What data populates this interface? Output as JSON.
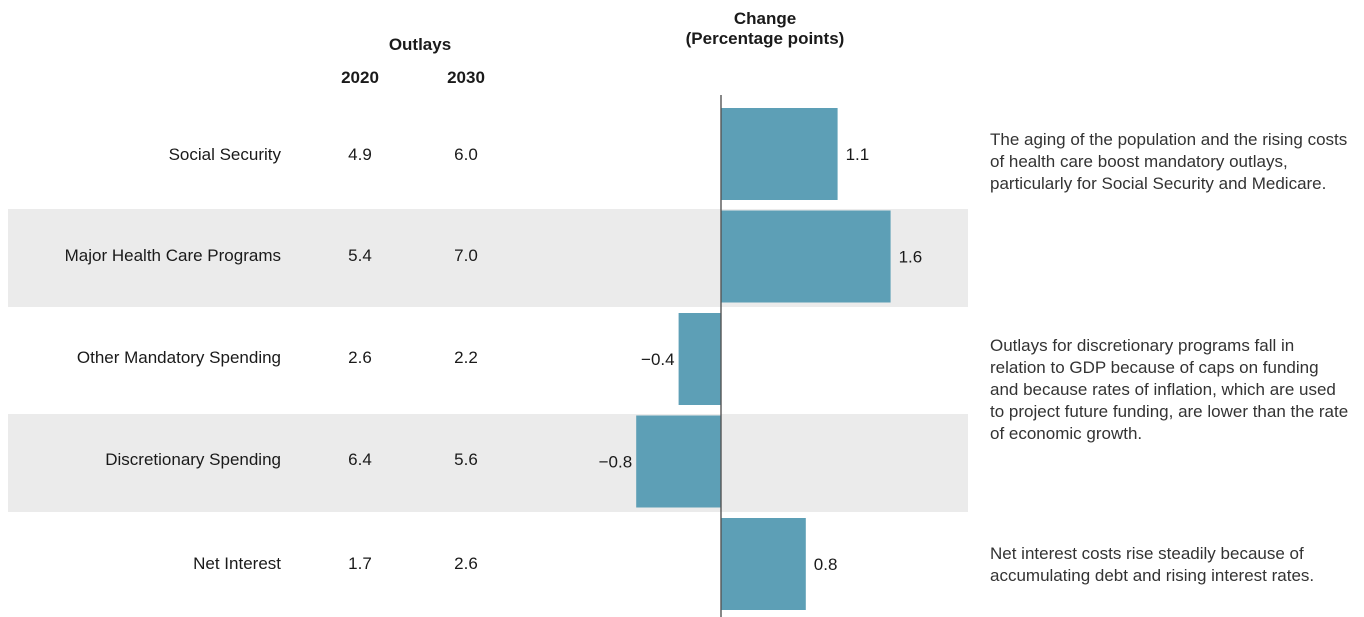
{
  "headers": {
    "outlays": "Outlays",
    "year_2020": "2020",
    "year_2030": "2030",
    "change_line1": "Change",
    "change_line2": "(Percentage points)"
  },
  "rows": [
    {
      "label": "Social Security",
      "v2020": "4.9",
      "v2030": "6.0"
    },
    {
      "label": "Major Health Care Programs",
      "v2020": "5.4",
      "v2030": "7.0"
    },
    {
      "label": "Other Mandatory Spending",
      "v2020": "2.6",
      "v2030": "2.2"
    },
    {
      "label": "Discretionary Spending",
      "v2020": "6.4",
      "v2030": "5.6"
    },
    {
      "label": "Net Interest",
      "v2020": "1.7",
      "v2030": "2.6"
    }
  ],
  "notes": [
    "The aging of the population and the rising costs of health care boost mandatory outlays, particularly for Social Security and Medicare.",
    "Outlays for discretionary programs fall in relation to GDP because of caps on funding and because rates of inflation, which are used to project future funding, are lower than the rate of economic growth.",
    "Net interest costs rise steadily because of accumulating debt and rising interest rates."
  ],
  "colors": {
    "bar": "#5d9fb6",
    "band": "#ebebeb"
  },
  "chart_data": {
    "type": "bar",
    "orientation": "horizontal",
    "title": "Change (Percentage points)",
    "categories": [
      "Social Security",
      "Major Health Care Programs",
      "Other Mandatory Spending",
      "Discretionary Spending",
      "Net Interest"
    ],
    "values": [
      1.1,
      1.6,
      -0.4,
      -0.8,
      0.8
    ],
    "value_labels": [
      "1.1",
      "1.6",
      "−0.4",
      "−0.8",
      "0.8"
    ],
    "xlim": [
      -0.8,
      1.6
    ],
    "grid": false
  }
}
